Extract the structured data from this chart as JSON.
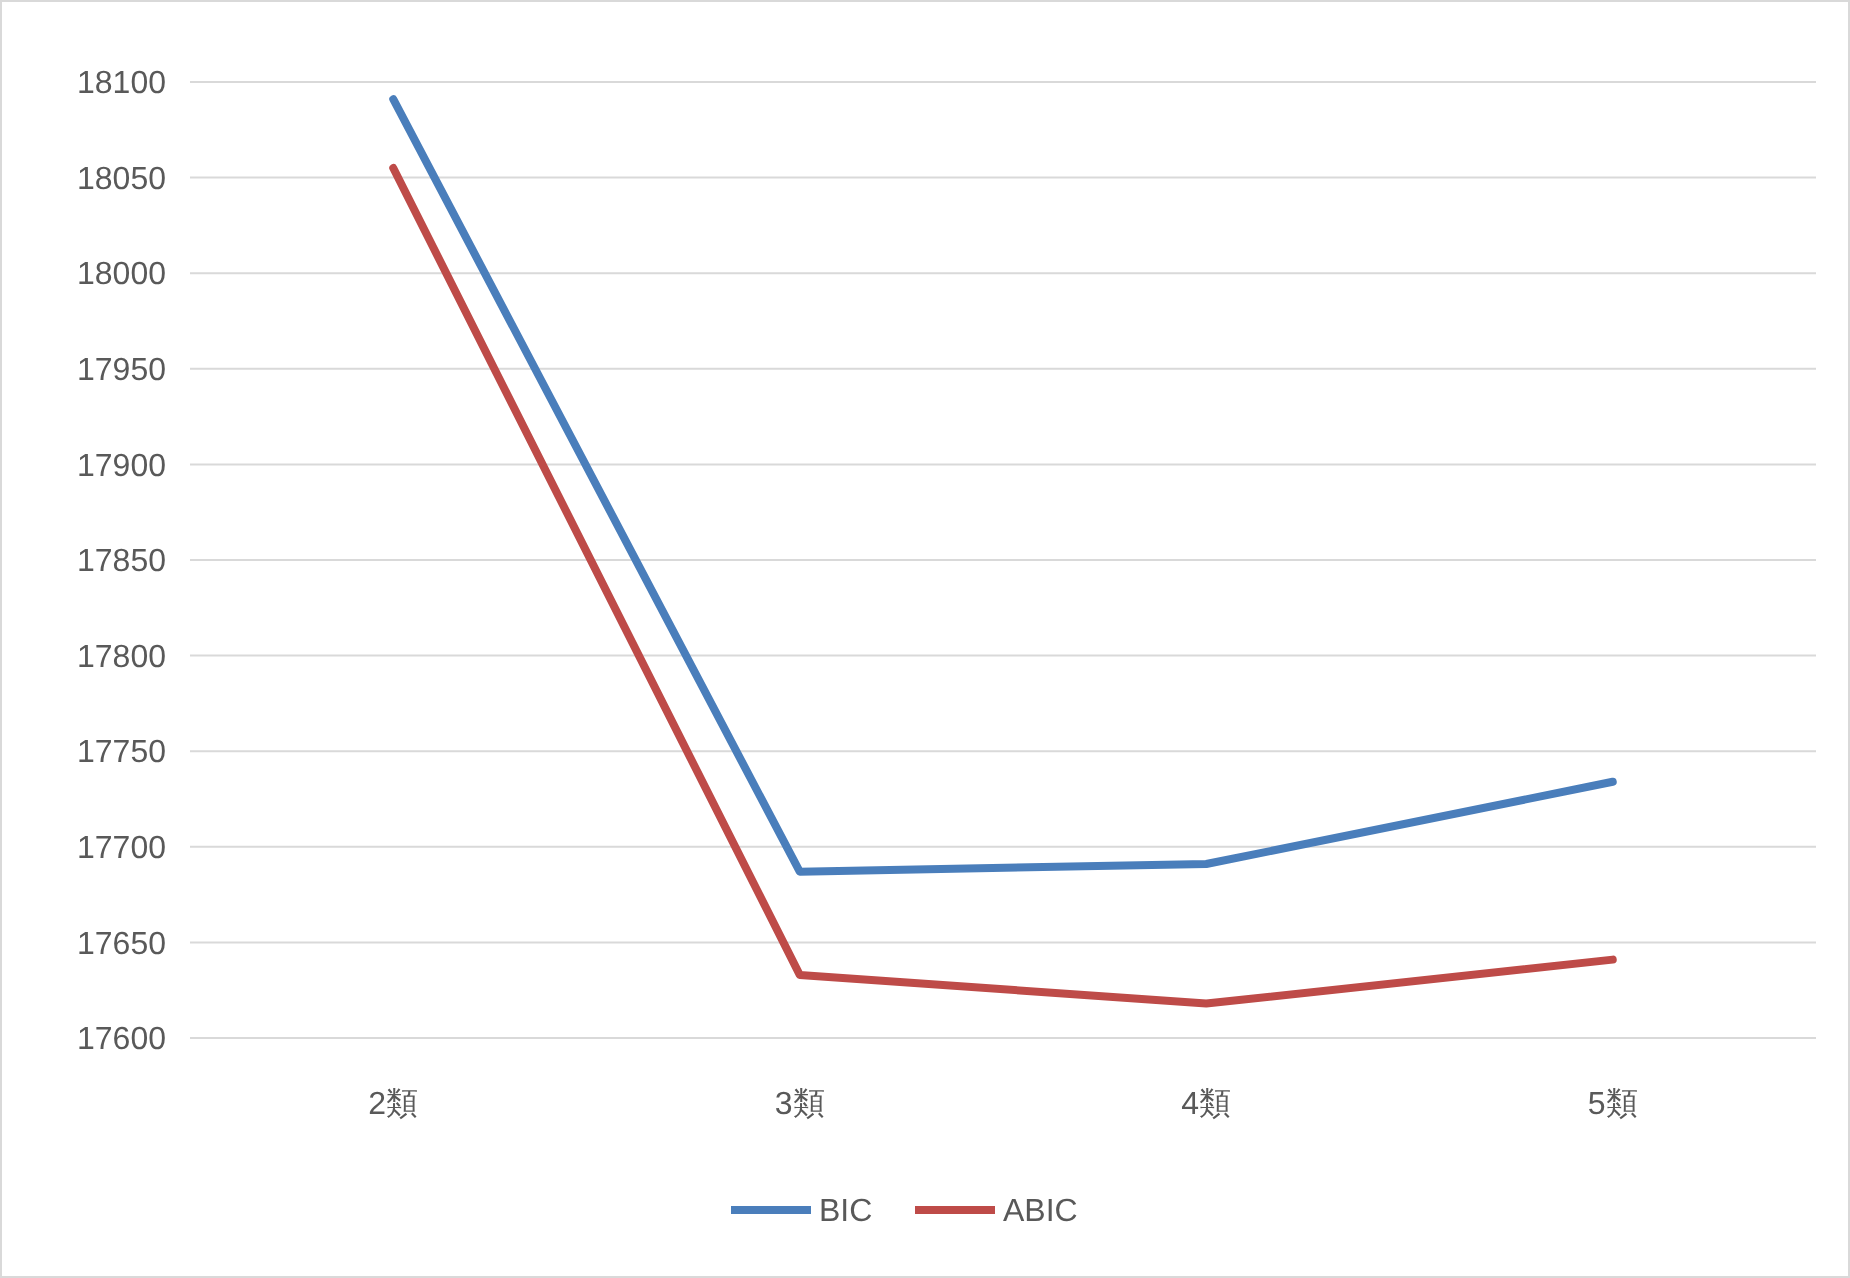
{
  "chart_data": {
    "type": "line",
    "categories": [
      "2類",
      "3類",
      "4類",
      "5類"
    ],
    "series": [
      {
        "name": "BIC",
        "color": "#4a7ebb",
        "values": [
          18091,
          17687,
          17691,
          17734
        ]
      },
      {
        "name": "ABIC",
        "color": "#be4b48",
        "values": [
          18055,
          17633,
          17618,
          17641
        ]
      }
    ],
    "ylim": [
      17600,
      18100
    ],
    "yticks": [
      17600,
      17650,
      17700,
      17750,
      17800,
      17850,
      17900,
      17950,
      18000,
      18050,
      18100
    ],
    "grid": "y",
    "legend": "bottom",
    "marker": "none",
    "line_style": "solid"
  }
}
